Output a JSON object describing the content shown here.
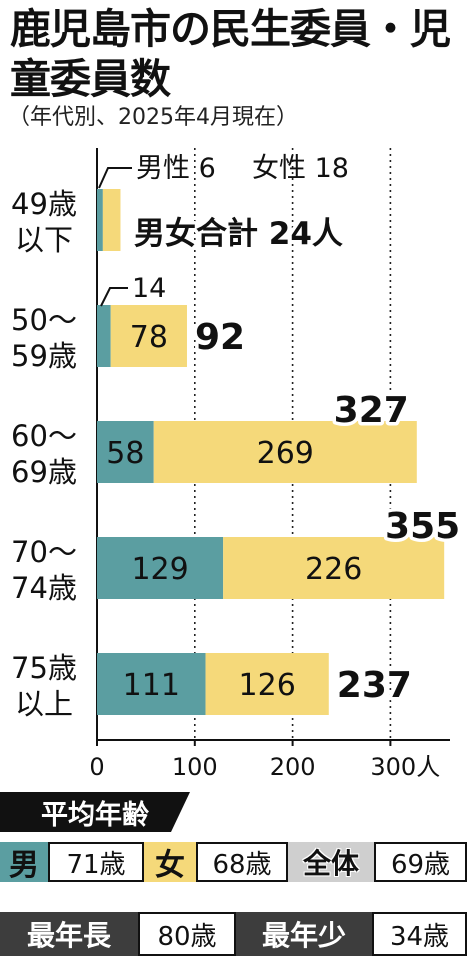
{
  "header": {
    "title": "鹿児島市の民生委員・児童委員数",
    "subtitle": "（年代別、2025年4月現在）"
  },
  "chart_data": {
    "type": "bar",
    "orientation": "horizontal",
    "stacked": true,
    "categories": [
      [
        "49歳",
        "以下"
      ],
      [
        "50〜",
        "59歳"
      ],
      [
        "60〜",
        "69歳"
      ],
      [
        "70〜",
        "74歳"
      ],
      [
        "75歳",
        "以上"
      ]
    ],
    "series": [
      {
        "name": "男性",
        "values": [
          6,
          14,
          58,
          129,
          111
        ],
        "color": "#5b9ea1"
      },
      {
        "name": "女性",
        "values": [
          18,
          78,
          269,
          226,
          126
        ],
        "color": "#f5d97a"
      }
    ],
    "totals": [
      24,
      92,
      327,
      355,
      237
    ],
    "xlim": [
      0,
      355
    ],
    "xticks": [
      0,
      100,
      200,
      300
    ],
    "xtick_labels": [
      "0",
      "100",
      "200",
      "300人"
    ],
    "grid": "dotted vertical at 100, 200, 300",
    "annotations": {
      "male_label": "男性 6",
      "female_label": "女性 18",
      "total_label": "男女合計 24人",
      "male_50s_label": "14"
    }
  },
  "average_age": {
    "heading": "平均年齢",
    "male_label": "男",
    "male_value": "71歳",
    "female_label": "女",
    "female_value": "68歳",
    "overall_label": "全体",
    "overall_value": "69歳"
  },
  "extremes": {
    "oldest_label": "最年長",
    "oldest_value": "80歳",
    "youngest_label": "最年少",
    "youngest_value": "34歳"
  }
}
